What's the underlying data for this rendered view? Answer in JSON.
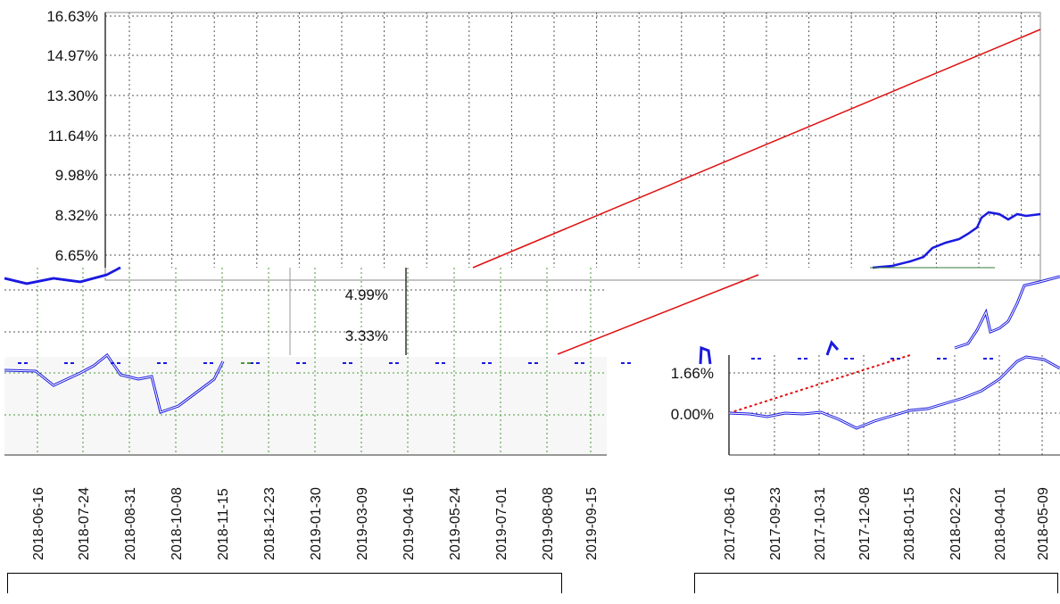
{
  "chart_data": [
    {
      "type": "line",
      "title": "",
      "xlabel": "",
      "ylabel": "",
      "y_ticks": [
        "16.63%",
        "14.97%",
        "13.30%",
        "11.64%",
        "9.98%",
        "8.32%",
        "6.65%",
        "4.99%",
        "3.33%",
        "1.66%",
        "0.00%"
      ],
      "ylim": [
        0.0,
        16.63
      ],
      "grid": true,
      "x_ticks": [
        "2018-06-16",
        "2018-07-24",
        "2018-08-31",
        "2018-10-08",
        "2018-11-15",
        "2018-12-23",
        "2019-01-30",
        "2019-03-09",
        "2019-04-16",
        "2019-05-24",
        "2019-07-01",
        "2019-08-08",
        "2019-09-15"
      ],
      "series": [
        {
          "color": "#e01010",
          "style": "line",
          "x": [
            "2018-06-16",
            "2019-09-15"
          ],
          "values": [
            2.2,
            16.0
          ]
        },
        {
          "color": "#1a1ae0",
          "style": "line",
          "x": [
            "2018-06-16",
            "2018-07-24",
            "2018-08-31",
            "2018-10-08",
            "2018-11-15",
            "2018-12-23",
            "2019-01-30",
            "2019-03-09",
            "2019-04-16",
            "2019-05-24",
            "2019-07-01",
            "2019-08-08",
            "2019-09-15"
          ],
          "values": [
            -0.2,
            0.1,
            0.3,
            0.0,
            0.6,
            1.2,
            2.0,
            3.5,
            4.9,
            5.6,
            7.2,
            8.3,
            8.3
          ]
        }
      ]
    },
    {
      "type": "line",
      "title": "",
      "xlabel": "",
      "ylabel": "",
      "y_ticks": [
        "1.66%",
        "0.00%"
      ],
      "x_ticks": [
        "2017-08-16",
        "2017-09-23",
        "2017-10-31",
        "2017-12-08",
        "2018-01-15",
        "2018-02-22",
        "2018-04-01",
        "2018-05-09"
      ],
      "grid": true,
      "series": [
        {
          "color": "#e01010",
          "style": "dashed",
          "x": [
            "2017-08-16",
            "2018-01-15"
          ],
          "values": [
            0.0,
            2.0
          ]
        },
        {
          "color": "#1a1ae0",
          "style": "double",
          "x": [
            "2017-08-16",
            "2017-09-23",
            "2017-10-31",
            "2017-12-08",
            "2018-01-15",
            "2018-02-22",
            "2018-04-01",
            "2018-05-09"
          ],
          "values": [
            0.0,
            -0.1,
            0.0,
            -0.5,
            0.0,
            0.4,
            1.0,
            2.0
          ]
        }
      ]
    }
  ],
  "colors": {
    "red_line": "#e01010",
    "blue_line": "#1a1ae0",
    "grid": "#555555",
    "grid_green": "#4a9a3a"
  }
}
